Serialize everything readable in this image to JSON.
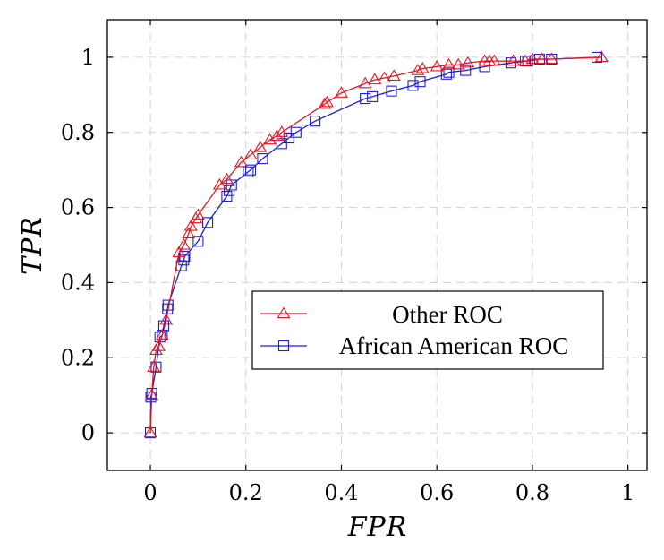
{
  "chart_data": {
    "type": "line",
    "xlabel": "FPR",
    "ylabel": "TPR",
    "xlim": [
      -0.09,
      1.04
    ],
    "ylim": [
      -0.1,
      1.1
    ],
    "xticks": [
      0,
      0.2,
      0.4,
      0.6,
      0.8,
      1
    ],
    "xtick_labels": [
      "0",
      "0.2",
      "0.4",
      "0.6",
      "0.8",
      "1"
    ],
    "yticks": [
      0,
      0.2,
      0.4,
      0.6,
      0.8,
      1
    ],
    "ytick_labels": [
      "0",
      "0.2",
      "0.4",
      "0.6",
      "0.8",
      "1"
    ],
    "grid": true,
    "legend_position": "center-right",
    "series": [
      {
        "name": "Other ROC",
        "color": "#e8141e",
        "marker": "triangle",
        "x": [
          0,
          0.003,
          0.007,
          0.012,
          0.018,
          0.025,
          0.033,
          0.06,
          0.07,
          0.08,
          0.085,
          0.095,
          0.1,
          0.145,
          0.16,
          0.19,
          0.21,
          0.23,
          0.25,
          0.265,
          0.275,
          0.365,
          0.37,
          0.4,
          0.45,
          0.47,
          0.49,
          0.51,
          0.56,
          0.57,
          0.6,
          0.625,
          0.645,
          0.665,
          0.7,
          0.71,
          0.72,
          0.76,
          0.785,
          0.8,
          0.82,
          0.84,
          0.945
        ],
        "y": [
          0,
          0.1,
          0.175,
          0.22,
          0.23,
          0.26,
          0.3,
          0.48,
          0.5,
          0.53,
          0.55,
          0.57,
          0.58,
          0.66,
          0.675,
          0.72,
          0.74,
          0.76,
          0.78,
          0.79,
          0.8,
          0.875,
          0.88,
          0.905,
          0.93,
          0.94,
          0.945,
          0.95,
          0.965,
          0.97,
          0.975,
          0.98,
          0.98,
          0.985,
          0.99,
          0.99,
          0.99,
          0.99,
          0.99,
          0.995,
          0.995,
          0.995,
          1.0
        ]
      },
      {
        "name": "African American ROC",
        "color": "#1d1fd8",
        "marker": "square",
        "x": [
          0,
          0.001,
          0.003,
          0.012,
          0.02,
          0.025,
          0.028,
          0.036,
          0.037,
          0.065,
          0.07,
          0.072,
          0.1,
          0.12,
          0.16,
          0.165,
          0.17,
          0.205,
          0.21,
          0.235,
          0.275,
          0.29,
          0.305,
          0.345,
          0.45,
          0.465,
          0.505,
          0.55,
          0.565,
          0.62,
          0.625,
          0.66,
          0.7,
          0.755,
          0.785,
          0.79,
          0.815,
          0.84,
          0.935
        ],
        "y": [
          0,
          0.095,
          0.105,
          0.175,
          0.255,
          0.26,
          0.285,
          0.33,
          0.34,
          0.445,
          0.46,
          0.47,
          0.51,
          0.56,
          0.63,
          0.645,
          0.66,
          0.695,
          0.7,
          0.73,
          0.77,
          0.785,
          0.8,
          0.83,
          0.89,
          0.895,
          0.91,
          0.925,
          0.935,
          0.955,
          0.96,
          0.965,
          0.975,
          0.985,
          0.99,
          0.99,
          0.995,
          0.995,
          1.0
        ]
      }
    ]
  }
}
